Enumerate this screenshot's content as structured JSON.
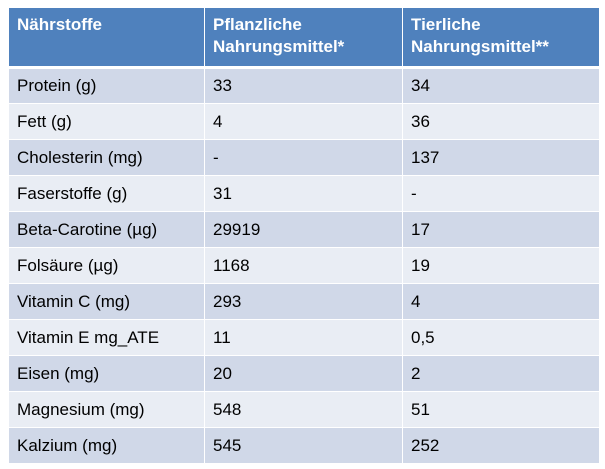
{
  "table": {
    "headers": [
      [
        "Nährstoffe"
      ],
      [
        "Pflanzliche",
        "Nahrungsmittel*"
      ],
      [
        "Tierliche",
        "Nahrungsmittel**"
      ]
    ],
    "rows": [
      [
        "Protein (g)",
        "33",
        "34"
      ],
      [
        "Fett (g)",
        "4",
        "36"
      ],
      [
        "Cholesterin (mg)",
        "-",
        "137"
      ],
      [
        "Faserstoffe (g)",
        "31",
        "-"
      ],
      [
        "Beta-Carotine (µg)",
        "29919",
        "17"
      ],
      [
        "Folsäure (µg)",
        "1168",
        "19"
      ],
      [
        "Vitamin C (mg)",
        "293",
        "4"
      ],
      [
        "Vitamin E mg_ATE",
        "11",
        "0,5"
      ],
      [
        "Eisen (mg)",
        "20",
        "2"
      ],
      [
        "Magnesium (mg)",
        "548",
        "51"
      ],
      [
        "Kalzium (mg)",
        "545",
        "252"
      ]
    ],
    "colors": {
      "header_bg": "#4f81bd",
      "row_odd_bg": "#d0d8e8",
      "row_even_bg": "#e9edf4"
    }
  }
}
